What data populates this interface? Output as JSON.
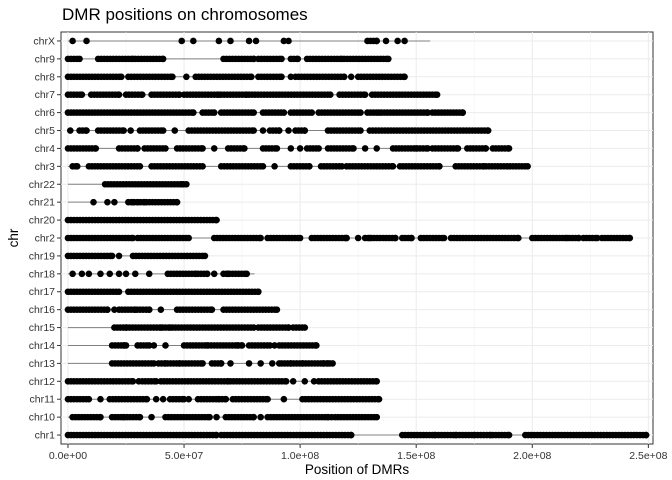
{
  "chart_data": {
    "type": "scatter",
    "title": "DMR positions on chromosomes",
    "xlabel": "Position of DMRs",
    "ylabel": "chr",
    "xlim": [
      -3000000,
      252000000
    ],
    "x_ticks": [
      0,
      50000000,
      100000000,
      150000000,
      200000000,
      250000000
    ],
    "x_tick_labels": [
      "0.0e+00",
      "5.0e+07",
      "1.0e+08",
      "1.5e+08",
      "2.0e+08",
      "2.5e+08"
    ],
    "grid": true,
    "legend": "none",
    "point_color": "#000000",
    "segment_color": "#808080",
    "categories": [
      "chr1",
      "chr10",
      "chr11",
      "chr12",
      "chr13",
      "chr14",
      "chr15",
      "chr16",
      "chr17",
      "chr18",
      "chr19",
      "chr2",
      "chr20",
      "chr21",
      "chr22",
      "chr3",
      "chr4",
      "chr5",
      "chr6",
      "chr7",
      "chr8",
      "chr9",
      "chrX"
    ],
    "series": [
      {
        "chr": "chr1",
        "length": 248956422,
        "ranges": [
          [
            0,
            64000000
          ],
          [
            66000000,
            122000000
          ],
          [
            144000000,
            190000000
          ],
          [
            197000000,
            249000000
          ]
        ],
        "points": [
          158000000,
          167000000,
          175000000,
          182000000
        ]
      },
      {
        "chr": "chr10",
        "length": 133797422,
        "ranges": [
          [
            2000000,
            14000000
          ],
          [
            19000000,
            31000000
          ],
          [
            42000000,
            61000000
          ],
          [
            68000000,
            80000000
          ],
          [
            86000000,
            112000000
          ],
          [
            115000000,
            133000000
          ]
        ],
        "points": [
          24000000,
          36000000,
          64000000,
          83000000,
          113500000
        ]
      },
      {
        "chr": "chr11",
        "length": 135086622,
        "ranges": [
          [
            0,
            9000000
          ],
          [
            18000000,
            34000000
          ],
          [
            44000000,
            50000000
          ],
          [
            56000000,
            68000000
          ],
          [
            71000000,
            86000000
          ],
          [
            101000000,
            134000000
          ]
        ],
        "points": [
          14000000,
          38000000,
          41000000,
          52000000,
          65000000,
          93000000
        ]
      },
      {
        "chr": "chr12",
        "length": 133275309,
        "ranges": [
          [
            0,
            28000000
          ],
          [
            32000000,
            38000000
          ],
          [
            40000000,
            69000000
          ],
          [
            70000000,
            94000000
          ],
          [
            108000000,
            133000000
          ]
        ],
        "points": [
          30500000,
          97000000,
          102000000,
          106000000
        ]
      },
      {
        "chr": "chr13",
        "length": 114364328,
        "ranges": [
          [
            19000000,
            37000000
          ],
          [
            39000000,
            58000000
          ],
          [
            62000000,
            66000000
          ],
          [
            92000000,
            114000000
          ]
        ],
        "points": [
          42000000,
          48000000,
          70000000,
          78000000,
          83000000,
          88000000,
          91000000,
          96000000,
          101000000,
          110000000,
          112000000
        ]
      },
      {
        "chr": "chr14",
        "length": 107043718,
        "ranges": [
          [
            19000000,
            25000000
          ],
          [
            30000000,
            35000000
          ],
          [
            50000000,
            75000000
          ],
          [
            78000000,
            87000000
          ],
          [
            91000000,
            107000000
          ]
        ],
        "points": [
          24000000,
          37000000,
          42000000,
          60000000,
          73000000,
          89000000
        ]
      },
      {
        "chr": "chr15",
        "length": 101991189,
        "ranges": [
          [
            20000000,
            44000000
          ],
          [
            45000000,
            80000000
          ],
          [
            82000000,
            95000000
          ],
          [
            97000000,
            102000000
          ]
        ],
        "points": [
          25000000,
          40000000
        ]
      },
      {
        "chr": "chr16",
        "length": 90338345,
        "ranges": [
          [
            0,
            17000000
          ],
          [
            22000000,
            35000000
          ],
          [
            47000000,
            62000000
          ],
          [
            67000000,
            90000000
          ]
        ],
        "points": [
          20000000,
          29000000,
          40000000
        ]
      },
      {
        "chr": "chr17",
        "length": 83257441,
        "ranges": [
          [
            0,
            22000000
          ],
          [
            26000000,
            82000000
          ]
        ],
        "points": []
      },
      {
        "chr": "chr18",
        "length": 80373285,
        "ranges": [
          [
            43000000,
            60000000
          ],
          [
            67000000,
            77000000
          ]
        ],
        "points": [
          2000000,
          6000000,
          9000000,
          14000000,
          18000000,
          22000000,
          25000000,
          29000000,
          35000000,
          55000000,
          63000000,
          69000000
        ]
      },
      {
        "chr": "chr19",
        "length": 58617616,
        "ranges": [
          [
            0,
            19000000
          ],
          [
            28000000,
            59000000
          ]
        ],
        "points": [
          22000000
        ]
      },
      {
        "chr": "chr2",
        "length": 242193529,
        "ranges": [
          [
            0,
            28000000
          ],
          [
            30000000,
            52000000
          ],
          [
            63000000,
            83000000
          ],
          [
            86000000,
            100000000
          ],
          [
            105000000,
            120000000
          ],
          [
            128000000,
            141000000
          ],
          [
            144000000,
            148000000
          ],
          [
            152000000,
            162000000
          ],
          [
            165000000,
            194000000
          ],
          [
            200000000,
            215000000
          ],
          [
            216000000,
            220000000
          ],
          [
            222000000,
            228000000
          ],
          [
            230000000,
            242000000
          ]
        ],
        "points": [
          120000000,
          125000000,
          130000000
        ]
      },
      {
        "chr": "chr20",
        "length": 64444167,
        "ranges": [
          [
            0,
            64000000
          ]
        ],
        "points": []
      },
      {
        "chr": "chr21",
        "length": 46709983,
        "ranges": [
          [
            26000000,
            47000000
          ]
        ],
        "points": [
          11000000,
          17000000,
          20000000,
          28000000,
          30000000,
          33000000
        ]
      },
      {
        "chr": "chr22",
        "length": 50818468,
        "ranges": [
          [
            16000000,
            51000000
          ]
        ],
        "points": [
          49000000
        ]
      },
      {
        "chr": "chr3",
        "length": 198295559,
        "ranges": [
          [
            2000000,
            4000000
          ],
          [
            9000000,
            31000000
          ],
          [
            36000000,
            58000000
          ],
          [
            66000000,
            84000000
          ],
          [
            96000000,
            104000000
          ],
          [
            109000000,
            118000000
          ],
          [
            120000000,
            140000000
          ],
          [
            143000000,
            160000000
          ],
          [
            167000000,
            179000000
          ],
          [
            180000000,
            198000000
          ]
        ],
        "points": [
          89000000
        ]
      },
      {
        "chr": "chr4",
        "length": 190214555,
        "ranges": [
          [
            0,
            12000000
          ],
          [
            22000000,
            30000000
          ],
          [
            33000000,
            42000000
          ],
          [
            47000000,
            58000000
          ],
          [
            69000000,
            76000000
          ],
          [
            84000000,
            90000000
          ],
          [
            103000000,
            108000000
          ],
          [
            112000000,
            123000000
          ],
          [
            140000000,
            155000000
          ],
          [
            157000000,
            168000000
          ],
          [
            172000000,
            180000000
          ],
          [
            183000000,
            190000000
          ]
        ],
        "points": [
          63000000,
          96000000,
          100000000,
          128000000,
          133000000,
          150000000
        ]
      },
      {
        "chr": "chr5",
        "length": 181538259,
        "ranges": [
          [
            5000000,
            8000000
          ],
          [
            13000000,
            24000000
          ],
          [
            31000000,
            41000000
          ],
          [
            52000000,
            80000000
          ],
          [
            87000000,
            91000000
          ],
          [
            98000000,
            102000000
          ],
          [
            112000000,
            126000000
          ],
          [
            130000000,
            181000000
          ]
        ],
        "points": [
          1000000,
          27000000,
          46000000,
          84000000,
          95000000
        ]
      },
      {
        "chr": "chr6",
        "length": 170805979,
        "ranges": [
          [
            0,
            54000000
          ],
          [
            58000000,
            63000000
          ],
          [
            66000000,
            80000000
          ],
          [
            84000000,
            93000000
          ],
          [
            96000000,
            105000000
          ],
          [
            108000000,
            126000000
          ],
          [
            129000000,
            134000000
          ],
          [
            135000000,
            155000000
          ],
          [
            157000000,
            170000000
          ]
        ],
        "points": []
      },
      {
        "chr": "chr7",
        "length": 159345973,
        "ranges": [
          [
            0,
            6000000
          ],
          [
            10000000,
            22000000
          ],
          [
            25000000,
            32000000
          ],
          [
            36000000,
            48000000
          ],
          [
            50000000,
            65000000
          ],
          [
            66000000,
            77000000
          ],
          [
            78000000,
            113000000
          ],
          [
            117000000,
            128000000
          ],
          [
            131000000,
            159000000
          ]
        ],
        "points": []
      },
      {
        "chr": "chr8",
        "length": 145138636,
        "ranges": [
          [
            0,
            23000000
          ],
          [
            26000000,
            45000000
          ],
          [
            55000000,
            79000000
          ],
          [
            82000000,
            92000000
          ],
          [
            98000000,
            119000000
          ],
          [
            125000000,
            145000000
          ]
        ],
        "points": [
          51000000,
          96000000,
          122000000
        ]
      },
      {
        "chr": "chr9",
        "length": 138394717,
        "ranges": [
          [
            0,
            5000000
          ],
          [
            13000000,
            28000000
          ],
          [
            29000000,
            41000000
          ],
          [
            67000000,
            80000000
          ],
          [
            82000000,
            92000000
          ],
          [
            96000000,
            99000000
          ],
          [
            103000000,
            118000000
          ],
          [
            119000000,
            138000000
          ]
        ],
        "points": []
      },
      {
        "chrX": "",
        "chr": "chrX",
        "length": 156040895,
        "ranges": [
          [
            129000000,
            133000000
          ]
        ],
        "points": [
          2000000,
          8000000,
          49000000,
          54000000,
          65000000,
          70000000,
          78000000,
          81000000,
          93000000,
          95000000,
          137000000,
          142000000,
          145000000
        ]
      }
    ]
  }
}
